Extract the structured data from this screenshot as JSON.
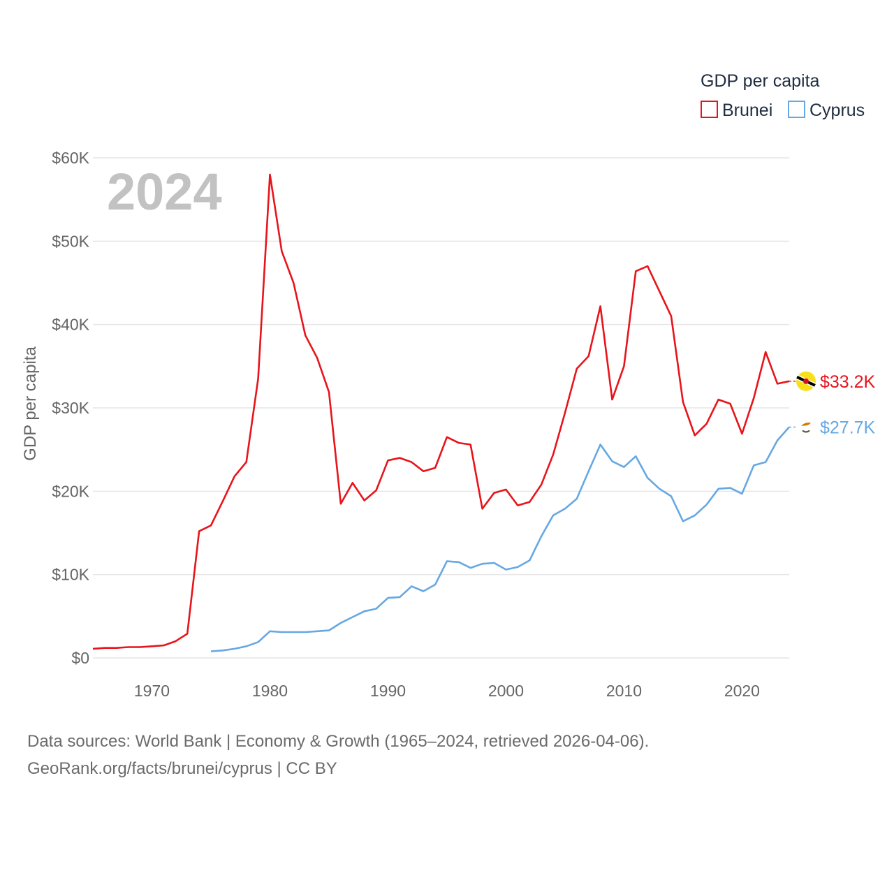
{
  "chart_data": {
    "type": "line",
    "title": "GDP per capita",
    "ylabel": "GDP per capita",
    "xlabel": "",
    "year_label": "2024",
    "xlim": [
      1965,
      2024
    ],
    "ylim": [
      0,
      60000
    ],
    "x_ticks": [
      1970,
      1980,
      1990,
      2000,
      2010,
      2020
    ],
    "x_tick_labels": [
      "1970",
      "1980",
      "1990",
      "2000",
      "2010",
      "2020"
    ],
    "y_ticks": [
      0,
      10000,
      20000,
      30000,
      40000,
      50000,
      60000
    ],
    "y_tick_labels": [
      "$0",
      "$10K",
      "$20K",
      "$30K",
      "$40K",
      "$50K",
      "$60K"
    ],
    "grid": true,
    "legend_position": "top-right",
    "series": [
      {
        "name": "Brunei",
        "color": "#e8141b",
        "end_label": "$33.2K",
        "end_icon": "brunei-flag-icon",
        "x": [
          1965,
          1966,
          1967,
          1968,
          1969,
          1970,
          1971,
          1972,
          1973,
          1974,
          1975,
          1976,
          1977,
          1978,
          1979,
          1980,
          1981,
          1982,
          1983,
          1984,
          1985,
          1986,
          1987,
          1988,
          1989,
          1990,
          1991,
          1992,
          1993,
          1994,
          1995,
          1996,
          1997,
          1998,
          1999,
          2000,
          2001,
          2002,
          2003,
          2004,
          2005,
          2006,
          2007,
          2008,
          2009,
          2010,
          2011,
          2012,
          2013,
          2014,
          2015,
          2016,
          2017,
          2018,
          2019,
          2020,
          2021,
          2022,
          2023,
          2024
        ],
        "values": [
          1100,
          1200,
          1200,
          1300,
          1300,
          1400,
          1500,
          2000,
          2900,
          15200,
          15900,
          18800,
          21800,
          23500,
          33500,
          58000,
          48800,
          45000,
          38700,
          36000,
          31900,
          18500,
          21000,
          18900,
          20100,
          23700,
          24000,
          23500,
          22400,
          22800,
          26500,
          25800,
          25600,
          17900,
          19800,
          20200,
          18300,
          18700,
          20800,
          24400,
          29400,
          34700,
          36200,
          42200,
          31000,
          35000,
          46400,
          47000,
          44000,
          41000,
          30700,
          26700,
          28100,
          31000,
          30500,
          26900,
          31200,
          36700,
          32900,
          33200
        ]
      },
      {
        "name": "Cyprus",
        "color": "#66a8e3",
        "end_label": "$27.7K",
        "end_icon": "cyprus-flag-icon",
        "x": [
          1975,
          1976,
          1977,
          1978,
          1979,
          1980,
          1981,
          1982,
          1983,
          1984,
          1985,
          1986,
          1987,
          1988,
          1989,
          1990,
          1991,
          1992,
          1993,
          1994,
          1995,
          1996,
          1997,
          1998,
          1999,
          2000,
          2001,
          2002,
          2003,
          2004,
          2005,
          2006,
          2007,
          2008,
          2009,
          2010,
          2011,
          2012,
          2013,
          2014,
          2015,
          2016,
          2017,
          2018,
          2019,
          2020,
          2021,
          2022,
          2023,
          2024
        ],
        "values": [
          800,
          900,
          1100,
          1400,
          1900,
          3200,
          3100,
          3100,
          3100,
          3200,
          3300,
          4200,
          4900,
          5600,
          5900,
          7200,
          7300,
          8600,
          8000,
          8800,
          11600,
          11500,
          10800,
          11300,
          11400,
          10600,
          10900,
          11700,
          14600,
          17100,
          17900,
          19100,
          22400,
          25600,
          23600,
          22900,
          24200,
          21600,
          20300,
          19400,
          16400,
          17100,
          18400,
          20300,
          20400,
          19700,
          23100,
          23500,
          26100,
          27700
        ]
      }
    ]
  },
  "source": {
    "line1": "Data sources: World Bank | Economy & Growth (1965–2024, retrieved 2026-04-06).",
    "line2": "GeoRank.org/facts/brunei/cyprus | CC BY"
  },
  "colors": {
    "grid": "#e6e6e6",
    "axis_text": "#666666",
    "legend_text": "#1f2d40",
    "year_watermark": "#c2c2c2"
  }
}
